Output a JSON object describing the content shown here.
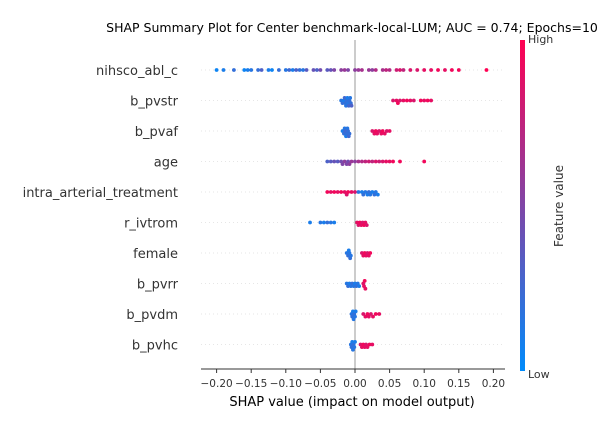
{
  "chart_data": {
    "type": "scatter",
    "subtype": "shap-beeswarm",
    "title": "SHAP Summary Plot for Center benchmark-local-LUM; AUC = 0.74; Epochs=10",
    "xlabel": "SHAP value (impact on model output)",
    "xlim": [
      -0.22,
      0.215
    ],
    "xticks": [
      -0.2,
      -0.15,
      -0.1,
      -0.05,
      0.0,
      0.05,
      0.1,
      0.15,
      0.2
    ],
    "xtick_labels": [
      "−0.20",
      "−0.15",
      "−0.10",
      "−0.05",
      "0.00",
      "0.05",
      "0.10",
      "0.15",
      "0.20"
    ],
    "colorbar": {
      "label": "Feature value",
      "high": "High",
      "low": "Low",
      "colors": [
        "#008bfb",
        "#ff0052"
      ]
    },
    "features": [
      {
        "name": "nihsco_abl_c",
        "points": [
          [
            -0.2,
            0.05
          ],
          [
            -0.19,
            0.1
          ],
          [
            -0.175,
            0.2
          ],
          [
            -0.16,
            0.05
          ],
          [
            -0.155,
            0.1
          ],
          [
            -0.15,
            0.15
          ],
          [
            -0.14,
            0.2
          ],
          [
            -0.135,
            0.3
          ],
          [
            -0.125,
            0.1
          ],
          [
            -0.12,
            0.05
          ],
          [
            -0.11,
            0.2
          ],
          [
            -0.1,
            0.15
          ],
          [
            -0.095,
            0.25
          ],
          [
            -0.09,
            0.1
          ],
          [
            -0.085,
            0.3
          ],
          [
            -0.08,
            0.2
          ],
          [
            -0.075,
            0.15
          ],
          [
            -0.07,
            0.35
          ],
          [
            -0.06,
            0.4
          ],
          [
            -0.055,
            0.3
          ],
          [
            -0.05,
            0.45
          ],
          [
            -0.04,
            0.35
          ],
          [
            -0.035,
            0.4
          ],
          [
            -0.03,
            0.5
          ],
          [
            -0.02,
            0.55
          ],
          [
            -0.015,
            0.6
          ],
          [
            -0.01,
            0.5
          ],
          [
            0.0,
            0.55
          ],
          [
            0.005,
            0.6
          ],
          [
            0.01,
            0.65
          ],
          [
            0.02,
            0.6
          ],
          [
            0.025,
            0.55
          ],
          [
            0.03,
            0.7
          ],
          [
            0.04,
            0.65
          ],
          [
            0.045,
            0.75
          ],
          [
            0.05,
            0.7
          ],
          [
            0.06,
            0.8
          ],
          [
            0.065,
            0.85
          ],
          [
            0.07,
            0.75
          ],
          [
            0.08,
            0.85
          ],
          [
            0.09,
            0.85
          ],
          [
            0.1,
            0.9
          ],
          [
            0.11,
            0.9
          ],
          [
            0.12,
            0.95
          ],
          [
            0.13,
            0.9
          ],
          [
            0.14,
            0.95
          ],
          [
            0.15,
            0.95
          ],
          [
            0.19,
            1.0
          ]
        ]
      },
      {
        "name": "b_pvstr",
        "points": [
          [
            -0.02,
            0.15
          ],
          [
            -0.018,
            0.2
          ],
          [
            -0.016,
            0.1
          ],
          [
            -0.015,
            0.25
          ],
          [
            -0.014,
            0.2
          ],
          [
            -0.013,
            0.15
          ],
          [
            -0.012,
            0.2
          ],
          [
            -0.011,
            0.1
          ],
          [
            -0.01,
            0.15
          ],
          [
            -0.009,
            0.25
          ],
          [
            -0.008,
            0.2
          ],
          [
            -0.007,
            0.15
          ],
          [
            -0.006,
            0.2
          ],
          [
            -0.005,
            0.3
          ],
          [
            0.055,
            0.85
          ],
          [
            0.06,
            0.9
          ],
          [
            0.062,
            0.95
          ],
          [
            0.065,
            0.85
          ],
          [
            0.07,
            0.9
          ],
          [
            0.075,
            0.95
          ],
          [
            0.08,
            0.9
          ],
          [
            0.085,
            0.85
          ],
          [
            0.095,
            0.95
          ],
          [
            0.1,
            0.9
          ],
          [
            0.105,
            0.95
          ],
          [
            0.11,
            0.9
          ]
        ]
      },
      {
        "name": "b_pvaf",
        "points": [
          [
            -0.018,
            0.1
          ],
          [
            -0.016,
            0.2
          ],
          [
            -0.015,
            0.15
          ],
          [
            -0.014,
            0.25
          ],
          [
            -0.013,
            0.1
          ],
          [
            -0.012,
            0.2
          ],
          [
            -0.011,
            0.15
          ],
          [
            -0.01,
            0.2
          ],
          [
            -0.009,
            0.25
          ],
          [
            -0.008,
            0.2
          ],
          [
            0.025,
            0.85
          ],
          [
            0.028,
            0.9
          ],
          [
            0.03,
            0.95
          ],
          [
            0.032,
            0.9
          ],
          [
            0.035,
            0.85
          ],
          [
            0.038,
            0.9
          ],
          [
            0.04,
            0.95
          ],
          [
            0.043,
            0.9
          ],
          [
            0.046,
            0.85
          ],
          [
            0.05,
            0.9
          ]
        ]
      },
      {
        "name": "age",
        "points": [
          [
            -0.04,
            0.3
          ],
          [
            -0.035,
            0.35
          ],
          [
            -0.03,
            0.4
          ],
          [
            -0.025,
            0.35
          ],
          [
            -0.02,
            0.45
          ],
          [
            -0.018,
            0.5
          ],
          [
            -0.015,
            0.55
          ],
          [
            -0.012,
            0.5
          ],
          [
            -0.01,
            0.45
          ],
          [
            -0.008,
            0.55
          ],
          [
            -0.005,
            0.6
          ],
          [
            0.0,
            0.55
          ],
          [
            0.005,
            0.65
          ],
          [
            0.01,
            0.7
          ],
          [
            0.015,
            0.75
          ],
          [
            0.02,
            0.8
          ],
          [
            0.025,
            0.75
          ],
          [
            0.03,
            0.85
          ],
          [
            0.035,
            0.8
          ],
          [
            0.04,
            0.85
          ],
          [
            0.045,
            0.9
          ],
          [
            0.05,
            0.9
          ],
          [
            0.055,
            0.95
          ],
          [
            0.065,
            0.95
          ],
          [
            0.1,
            0.95
          ]
        ]
      },
      {
        "name": "intra_arterial_treatment",
        "points": [
          [
            -0.04,
            0.95
          ],
          [
            -0.035,
            0.9
          ],
          [
            -0.03,
            0.95
          ],
          [
            -0.025,
            0.9
          ],
          [
            -0.02,
            0.95
          ],
          [
            -0.015,
            0.9
          ],
          [
            -0.012,
            0.85
          ],
          [
            -0.01,
            0.95
          ],
          [
            -0.005,
            0.9
          ],
          [
            0.0,
            0.85
          ],
          [
            0.005,
            0.15
          ],
          [
            0.01,
            0.1
          ],
          [
            0.012,
            0.2
          ],
          [
            0.015,
            0.15
          ],
          [
            0.018,
            0.1
          ],
          [
            0.02,
            0.2
          ],
          [
            0.022,
            0.15
          ],
          [
            0.025,
            0.1
          ],
          [
            0.028,
            0.2
          ],
          [
            0.03,
            0.15
          ],
          [
            0.033,
            0.1
          ]
        ]
      },
      {
        "name": "r_ivtrom",
        "points": [
          [
            -0.065,
            0.1
          ],
          [
            -0.05,
            0.15
          ],
          [
            -0.045,
            0.1
          ],
          [
            -0.04,
            0.2
          ],
          [
            -0.035,
            0.15
          ],
          [
            -0.03,
            0.1
          ],
          [
            0.003,
            0.9
          ],
          [
            0.005,
            0.85
          ],
          [
            0.007,
            0.95
          ],
          [
            0.009,
            0.9
          ],
          [
            0.011,
            0.85
          ],
          [
            0.013,
            0.95
          ],
          [
            0.015,
            0.9
          ],
          [
            0.017,
            0.85
          ]
        ]
      },
      {
        "name": "female",
        "points": [
          [
            -0.012,
            0.15
          ],
          [
            -0.01,
            0.2
          ],
          [
            -0.009,
            0.1
          ],
          [
            -0.008,
            0.15
          ],
          [
            -0.007,
            0.2
          ],
          [
            -0.006,
            0.15
          ],
          [
            0.01,
            0.85
          ],
          [
            0.012,
            0.9
          ],
          [
            0.014,
            0.95
          ],
          [
            0.016,
            0.9
          ],
          [
            0.018,
            0.85
          ],
          [
            0.02,
            0.9
          ],
          [
            0.022,
            0.95
          ]
        ]
      },
      {
        "name": "b_pvrr",
        "points": [
          [
            -0.012,
            0.15
          ],
          [
            -0.01,
            0.2
          ],
          [
            -0.008,
            0.1
          ],
          [
            -0.006,
            0.15
          ],
          [
            -0.004,
            0.2
          ],
          [
            -0.002,
            0.15
          ],
          [
            0.0,
            0.1
          ],
          [
            0.002,
            0.2
          ],
          [
            0.004,
            0.15
          ],
          [
            0.006,
            0.1
          ],
          [
            0.012,
            0.85
          ],
          [
            0.013,
            0.9
          ],
          [
            0.014,
            0.95
          ],
          [
            0.015,
            0.9
          ]
        ]
      },
      {
        "name": "b_pvdm",
        "points": [
          [
            -0.005,
            0.15
          ],
          [
            -0.004,
            0.2
          ],
          [
            -0.003,
            0.1
          ],
          [
            -0.002,
            0.15
          ],
          [
            -0.001,
            0.2
          ],
          [
            0.0,
            0.15
          ],
          [
            0.001,
            0.1
          ],
          [
            0.012,
            0.85
          ],
          [
            0.015,
            0.9
          ],
          [
            0.018,
            0.95
          ],
          [
            0.02,
            0.9
          ],
          [
            0.023,
            0.85
          ],
          [
            0.026,
            0.9
          ],
          [
            0.03,
            0.95
          ],
          [
            0.035,
            0.9
          ]
        ]
      },
      {
        "name": "b_pvhc",
        "points": [
          [
            -0.006,
            0.15
          ],
          [
            -0.005,
            0.2
          ],
          [
            -0.004,
            0.1
          ],
          [
            -0.003,
            0.15
          ],
          [
            -0.002,
            0.2
          ],
          [
            -0.001,
            0.15
          ],
          [
            0.0,
            0.1
          ],
          [
            0.008,
            0.85
          ],
          [
            0.01,
            0.9
          ],
          [
            0.012,
            0.95
          ],
          [
            0.014,
            0.9
          ],
          [
            0.016,
            0.85
          ],
          [
            0.018,
            0.9
          ],
          [
            0.021,
            0.95
          ],
          [
            0.025,
            0.9
          ]
        ]
      }
    ]
  }
}
